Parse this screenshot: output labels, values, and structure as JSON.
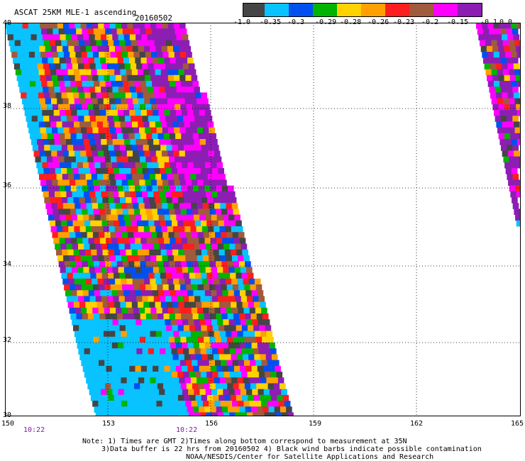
{
  "header": {
    "title": "ASCAT 25KM MLE-1 ascending",
    "date": "20160502"
  },
  "colorbar": {
    "colors": [
      "#454545",
      "#08c3ff",
      "#0050f0",
      "#00b400",
      "#ffd200",
      "#ffa000",
      "#ff1e1e",
      "#a05a3c",
      "#ff00ff",
      "#8c1eb4"
    ],
    "labels": [
      "-1.0",
      "-0.35",
      "-0.3",
      "-0.29",
      "-0.28",
      "-0.26",
      "-0.23",
      "-0.2",
      "-0.15",
      "-0.1",
      "0.0"
    ]
  },
  "map": {
    "lon_labels": [
      "150",
      "153",
      "156",
      "159",
      "162",
      "165"
    ],
    "lat_labels": [
      "40",
      "38",
      "36",
      "34",
      "32",
      "30"
    ],
    "times": [
      "10:22",
      "10:22"
    ],
    "extent": {
      "lon": [
        150,
        165
      ],
      "lat": [
        30,
        40
      ]
    }
  },
  "footer": {
    "note_line1": "Note: 1) Times are GMT 2)Times along bottom correspond to measurement at 35N",
    "note_line2": "3)Data buffer is 22 hrs from 20160502 4) Black wind barbs indicate possible contamination",
    "credit": "NOAA/NESDIS/Center for Satellite Applications and Research"
  }
}
